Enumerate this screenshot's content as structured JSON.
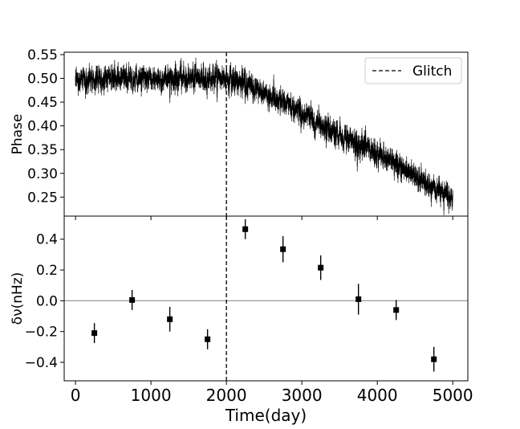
{
  "chart_data": [
    {
      "type": "scatter",
      "xlabel": "",
      "ylabel": "Phase",
      "xlim": [
        -150,
        5200
      ],
      "ylim": [
        0.21,
        0.555
      ],
      "x_ticks": [
        0,
        1000,
        2000,
        3000,
        4000,
        5000
      ],
      "y_ticks": [
        0.25,
        0.3,
        0.35,
        0.4,
        0.45,
        0.5,
        0.55
      ],
      "y_tick_labels": [
        "0.25",
        "0.30",
        "0.35",
        "0.40",
        "0.45",
        "0.50",
        "0.55"
      ],
      "legend": {
        "position": "top-right",
        "entries": [
          "Glitch"
        ]
      },
      "glitch_x": 2000,
      "trend": {
        "description_points": [
          {
            "x": 0,
            "y": 0.498
          },
          {
            "x": 2000,
            "y": 0.501
          },
          {
            "x": 2200,
            "y": 0.49
          },
          {
            "x": 2500,
            "y": 0.47
          },
          {
            "x": 3000,
            "y": 0.425
          },
          {
            "x": 3500,
            "y": 0.382
          },
          {
            "x": 4000,
            "y": 0.34
          },
          {
            "x": 4500,
            "y": 0.295
          },
          {
            "x": 5000,
            "y": 0.245
          }
        ],
        "x_start": 0,
        "x_end": 5000,
        "noise": 0.012,
        "error_bar": 0.01
      }
    },
    {
      "type": "scatter",
      "xlabel": "Time(day)",
      "ylabel": "δν(nHz)",
      "xlim": [
        -150,
        5200
      ],
      "ylim": [
        -0.52,
        0.55
      ],
      "x_ticks": [
        0,
        1000,
        2000,
        3000,
        4000,
        5000
      ],
      "x_tick_labels": [
        "0",
        "1000",
        "2000",
        "3000",
        "4000",
        "5000"
      ],
      "y_ticks": [
        -0.4,
        -0.2,
        0.0,
        0.2,
        0.4
      ],
      "y_tick_labels": [
        "−0.4",
        "−0.2",
        "0.0",
        "0.2",
        "0.4"
      ],
      "zero_line": 0.0,
      "glitch_x": 2000,
      "points": [
        {
          "x": 250,
          "y": -0.21,
          "err": 0.065
        },
        {
          "x": 750,
          "y": 0.005,
          "err": 0.065
        },
        {
          "x": 1250,
          "y": -0.12,
          "err": 0.08
        },
        {
          "x": 1750,
          "y": -0.25,
          "err": 0.065
        },
        {
          "x": 2250,
          "y": 0.465,
          "err": 0.065
        },
        {
          "x": 2750,
          "y": 0.335,
          "err": 0.085
        },
        {
          "x": 3250,
          "y": 0.215,
          "err": 0.08
        },
        {
          "x": 3750,
          "y": 0.01,
          "err": 0.1
        },
        {
          "x": 4250,
          "y": -0.06,
          "err": 0.065
        },
        {
          "x": 4750,
          "y": -0.38,
          "err": 0.08
        }
      ]
    }
  ]
}
